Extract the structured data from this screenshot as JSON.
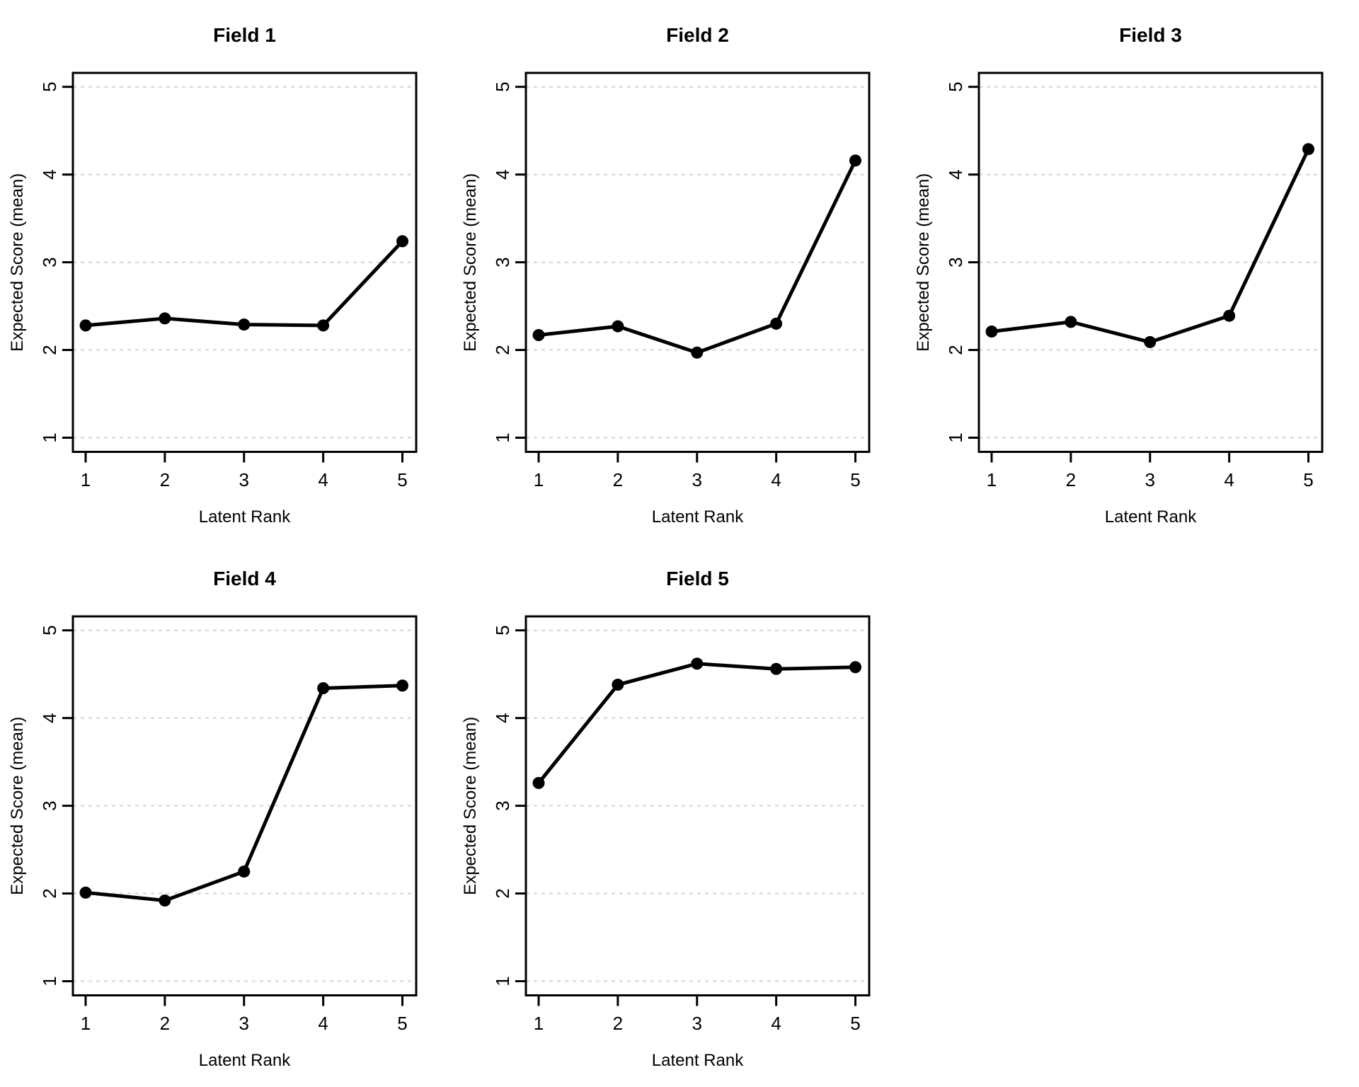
{
  "figure": {
    "description_visible_text_only": "",
    "panel_count": 5
  },
  "colors": {
    "line": "#000000",
    "point": "#000000",
    "box_border": "#000000",
    "grid": "#dcdcdc",
    "background": "#ffffff",
    "text": "#000000"
  },
  "layout_hint": {
    "grid_rows": 2,
    "grid_cols": 3,
    "empty_cells": [
      "row2-col3"
    ]
  },
  "chart_data": [
    {
      "type": "line",
      "title": "Field 1",
      "xlabel": "Latent Rank",
      "ylabel": "Expected Score (mean)",
      "x": [
        1,
        2,
        3,
        4,
        5
      ],
      "y": [
        2.28,
        2.36,
        2.29,
        2.28,
        3.24
      ],
      "x_ticks": [
        1,
        2,
        3,
        4,
        5
      ],
      "y_ticks": [
        1,
        2,
        3,
        4,
        5
      ],
      "xlim": [
        0.85,
        5.17
      ],
      "ylim": [
        0.84,
        5.16
      ],
      "grid": "horizontal-dashed",
      "legend": "none"
    },
    {
      "type": "line",
      "title": "Field 2",
      "xlabel": "Latent Rank",
      "ylabel": "Expected Score (mean)",
      "x": [
        1,
        2,
        3,
        4,
        5
      ],
      "y": [
        2.17,
        2.27,
        1.97,
        2.3,
        4.16
      ],
      "x_ticks": [
        1,
        2,
        3,
        4,
        5
      ],
      "y_ticks": [
        1,
        2,
        3,
        4,
        5
      ],
      "xlim": [
        0.85,
        5.17
      ],
      "ylim": [
        0.84,
        5.16
      ],
      "grid": "horizontal-dashed",
      "legend": "none"
    },
    {
      "type": "line",
      "title": "Field 3",
      "xlabel": "Latent Rank",
      "ylabel": "Expected Score (mean)",
      "x": [
        1,
        2,
        3,
        4,
        5
      ],
      "y": [
        2.21,
        2.32,
        2.09,
        2.39,
        4.29
      ],
      "x_ticks": [
        1,
        2,
        3,
        4,
        5
      ],
      "y_ticks": [
        1,
        2,
        3,
        4,
        5
      ],
      "xlim": [
        0.85,
        5.17
      ],
      "ylim": [
        0.84,
        5.16
      ],
      "grid": "horizontal-dashed",
      "legend": "none"
    },
    {
      "type": "line",
      "title": "Field 4",
      "xlabel": "Latent Rank",
      "ylabel": "Expected Score (mean)",
      "x": [
        1,
        2,
        3,
        4,
        5
      ],
      "y": [
        2.01,
        1.92,
        2.25,
        4.34,
        4.37
      ],
      "x_ticks": [
        1,
        2,
        3,
        4,
        5
      ],
      "y_ticks": [
        1,
        2,
        3,
        4,
        5
      ],
      "xlim": [
        0.85,
        5.17
      ],
      "ylim": [
        0.84,
        5.16
      ],
      "grid": "horizontal-dashed",
      "legend": "none"
    },
    {
      "type": "line",
      "title": "Field 5",
      "xlabel": "Latent Rank",
      "ylabel": "Expected Score (mean)",
      "x": [
        1,
        2,
        3,
        4,
        5
      ],
      "y": [
        3.26,
        4.38,
        4.62,
        4.56,
        4.58
      ],
      "x_ticks": [
        1,
        2,
        3,
        4,
        5
      ],
      "y_ticks": [
        1,
        2,
        3,
        4,
        5
      ],
      "xlim": [
        0.85,
        5.17
      ],
      "ylim": [
        0.84,
        5.16
      ],
      "grid": "horizontal-dashed",
      "legend": "none"
    }
  ]
}
